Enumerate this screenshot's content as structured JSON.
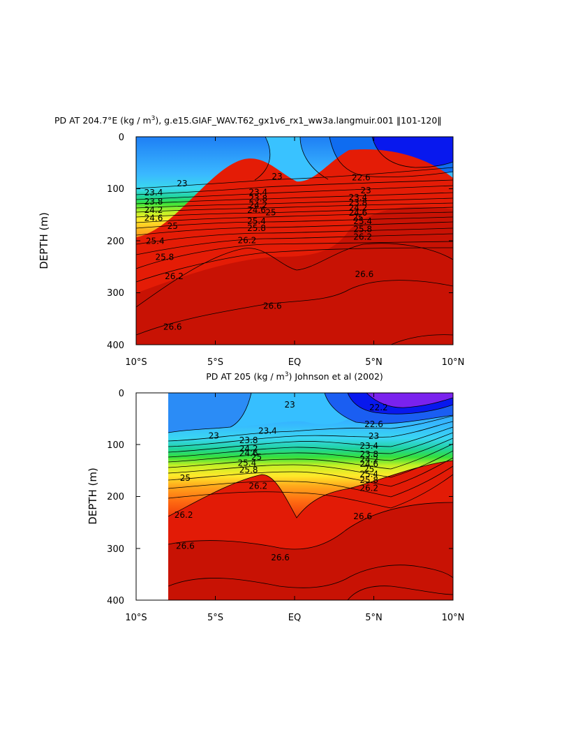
{
  "chart_data": [
    {
      "type": "contour",
      "title": "PD AT 204.7°E (kg / m³), g.e15.GIAF_WAV.T62_gx1v6_rx1_ww3a.langmuir.001 ‖101-120‖",
      "title_parts": {
        "pre": "PD AT 204.7°E (kg / m",
        "sup": "3",
        "post": "), g.e15.GIAF_WAV.T62_gx1v6_rx1_ww3a.langmuir.001 ‖101-120‖"
      },
      "ylabel": "DEPTH (m)",
      "xlabel": "",
      "x_ticks": [
        "10°S",
        "5°S",
        "EQ",
        "5°N",
        "10°N"
      ],
      "x_values": [
        -10,
        -5,
        0,
        5,
        10
      ],
      "xlim": [
        -10,
        10
      ],
      "y_ticks": [
        "0",
        "100",
        "200",
        "300",
        "400"
      ],
      "y_values": [
        0,
        100,
        200,
        300,
        400
      ],
      "ylim": [
        0,
        400
      ],
      "y_reversed": true,
      "data_xlim": [
        -10,
        10
      ],
      "contour_levels": [
        "22.2",
        "22.6",
        "23",
        "23.4",
        "23.8",
        "24.2",
        "24.6",
        "25",
        "25.4",
        "25.8",
        "26.2",
        "26.6"
      ],
      "labels": [
        {
          "text": "23",
          "x": -7.1,
          "y": 95
        },
        {
          "text": "23.4",
          "x": -8.9,
          "y": 113
        },
        {
          "text": "23.8",
          "x": -8.9,
          "y": 130
        },
        {
          "text": "24.2",
          "x": -8.9,
          "y": 146
        },
        {
          "text": "24.6",
          "x": -8.9,
          "y": 162
        },
        {
          "text": "25",
          "x": -7.7,
          "y": 177
        },
        {
          "text": "25.4",
          "x": -8.8,
          "y": 206
        },
        {
          "text": "25.8",
          "x": -8.2,
          "y": 237
        },
        {
          "text": "26.2",
          "x": -7.6,
          "y": 274
        },
        {
          "text": "26.6",
          "x": -7.7,
          "y": 371
        },
        {
          "text": "23",
          "x": -1.1,
          "y": 82
        },
        {
          "text": "23.4",
          "x": -2.3,
          "y": 112
        },
        {
          "text": "23.8",
          "x": -2.3,
          "y": 124
        },
        {
          "text": "24.2",
          "x": -2.3,
          "y": 137
        },
        {
          "text": "24.6",
          "x": -2.4,
          "y": 146
        },
        {
          "text": "25",
          "x": -1.5,
          "y": 151
        },
        {
          "text": "25.4",
          "x": -2.4,
          "y": 168
        },
        {
          "text": "25.8",
          "x": -2.4,
          "y": 181
        },
        {
          "text": "26.2",
          "x": -3.0,
          "y": 205
        },
        {
          "text": "26.6",
          "x": -1.4,
          "y": 331
        },
        {
          "text": "22.6",
          "x": 4.2,
          "y": 84
        },
        {
          "text": "23",
          "x": 4.5,
          "y": 109
        },
        {
          "text": "23.4",
          "x": 4.0,
          "y": 122
        },
        {
          "text": "23.8",
          "x": 4.0,
          "y": 132
        },
        {
          "text": "24.2",
          "x": 4.0,
          "y": 142
        },
        {
          "text": "24.6",
          "x": 4.0,
          "y": 152
        },
        {
          "text": "25",
          "x": 4.0,
          "y": 161
        },
        {
          "text": "25.4",
          "x": 4.3,
          "y": 168
        },
        {
          "text": "25.8",
          "x": 4.3,
          "y": 183
        },
        {
          "text": "26.2",
          "x": 4.3,
          "y": 198
        },
        {
          "text": "26.6",
          "x": 4.4,
          "y": 270
        }
      ],
      "series": []
    },
    {
      "type": "contour",
      "title": "PD AT 205 (kg / m³) Johnson et al (2002)",
      "title_parts": {
        "pre": "PD AT 205 (kg / m",
        "sup": "3",
        "post": ") Johnson et al (2002)"
      },
      "ylabel": "DEPTH (m)",
      "xlabel": "",
      "x_ticks": [
        "10°S",
        "5°S",
        "EQ",
        "5°N",
        "10°N"
      ],
      "x_values": [
        -10,
        -5,
        0,
        5,
        10
      ],
      "xlim": [
        -10,
        10
      ],
      "y_ticks": [
        "0",
        "100",
        "200",
        "300",
        "400"
      ],
      "y_values": [
        0,
        100,
        200,
        300,
        400
      ],
      "ylim": [
        0,
        400
      ],
      "y_reversed": true,
      "data_xlim": [
        -8,
        10
      ],
      "contour_levels": [
        "22.2",
        "22.6",
        "23",
        "23.4",
        "23.8",
        "24.2",
        "24.6",
        "25",
        "25.4",
        "25.8",
        "26.2",
        "26.6"
      ],
      "labels": [
        {
          "text": "23",
          "x": -5.1,
          "y": 88
        },
        {
          "text": "25",
          "x": -6.9,
          "y": 170
        },
        {
          "text": "26.2",
          "x": -7.0,
          "y": 241
        },
        {
          "text": "26.6",
          "x": -6.9,
          "y": 301
        },
        {
          "text": "23",
          "x": -0.3,
          "y": 28
        },
        {
          "text": "23.4",
          "x": -1.7,
          "y": 79
        },
        {
          "text": "23.8",
          "x": -2.9,
          "y": 97
        },
        {
          "text": "24.2",
          "x": -2.9,
          "y": 113
        },
        {
          "text": "24.6",
          "x": -2.9,
          "y": 122
        },
        {
          "text": "25",
          "x": -2.4,
          "y": 129
        },
        {
          "text": "25.4",
          "x": -3.0,
          "y": 141
        },
        {
          "text": "25.8",
          "x": -2.9,
          "y": 154
        },
        {
          "text": "26.2",
          "x": -2.3,
          "y": 185
        },
        {
          "text": "26.6",
          "x": -0.9,
          "y": 323
        },
        {
          "text": "22.2",
          "x": 5.3,
          "y": 34
        },
        {
          "text": "22.6",
          "x": 5.0,
          "y": 66
        },
        {
          "text": "23",
          "x": 5.0,
          "y": 89
        },
        {
          "text": "23.4",
          "x": 4.7,
          "y": 108
        },
        {
          "text": "23.8",
          "x": 4.7,
          "y": 124
        },
        {
          "text": "24.2",
          "x": 4.7,
          "y": 134
        },
        {
          "text": "24.6",
          "x": 4.7,
          "y": 143
        },
        {
          "text": "25",
          "x": 4.7,
          "y": 153
        },
        {
          "text": "25.4",
          "x": 4.7,
          "y": 162
        },
        {
          "text": "25.8",
          "x": 4.7,
          "y": 174
        },
        {
          "text": "26.2",
          "x": 4.7,
          "y": 189
        },
        {
          "text": "26.6",
          "x": 4.3,
          "y": 244
        }
      ],
      "series": []
    }
  ]
}
